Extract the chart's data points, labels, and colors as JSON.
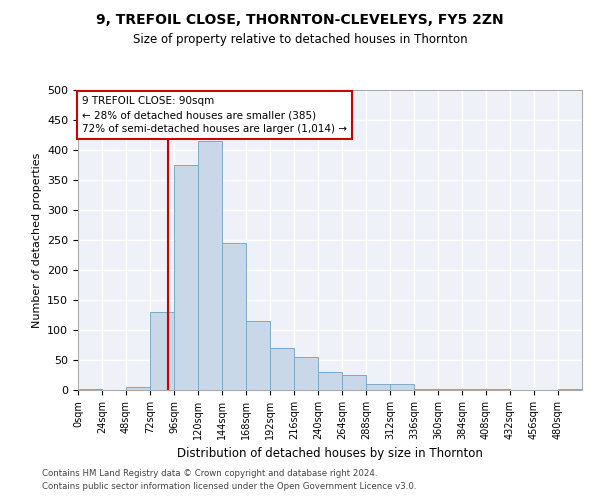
{
  "title": "9, TREFOIL CLOSE, THORNTON-CLEVELEYS, FY5 2ZN",
  "subtitle": "Size of property relative to detached houses in Thornton",
  "xlabel": "Distribution of detached houses by size in Thornton",
  "ylabel": "Number of detached properties",
  "bar_color": "#c8d8e8",
  "bar_edge_color": "#7aaaca",
  "background_color": "#eef2f8",
  "grid_color": "#ffffff",
  "annotation_line_color": "#cc0000",
  "annotation_box_color": "#cc0000",
  "annotation_text": "9 TREFOIL CLOSE: 90sqm\n← 28% of detached houses are smaller (385)\n72% of semi-detached houses are larger (1,014) →",
  "property_size": 90,
  "footnote1": "Contains HM Land Registry data © Crown copyright and database right 2024.",
  "footnote2": "Contains public sector information licensed under the Open Government Licence v3.0.",
  "bin_edges": [
    0,
    24,
    48,
    72,
    96,
    120,
    144,
    168,
    192,
    216,
    240,
    264,
    288,
    312,
    336,
    360,
    384,
    408,
    432,
    456,
    480,
    504
  ],
  "bar_heights": [
    2,
    0,
    5,
    130,
    375,
    415,
    245,
    115,
    70,
    55,
    30,
    25,
    10,
    10,
    2,
    2,
    2,
    2,
    0,
    0,
    2
  ],
  "ylim": [
    0,
    500
  ],
  "yticks": [
    0,
    50,
    100,
    150,
    200,
    250,
    300,
    350,
    400,
    450,
    500
  ],
  "xtick_labels": [
    "0sqm",
    "24sqm",
    "48sqm",
    "72sqm",
    "96sqm",
    "120sqm",
    "144sqm",
    "168sqm",
    "192sqm",
    "216sqm",
    "240sqm",
    "264sqm",
    "288sqm",
    "312sqm",
    "336sqm",
    "360sqm",
    "384sqm",
    "408sqm",
    "432sqm",
    "456sqm",
    "480sqm"
  ]
}
